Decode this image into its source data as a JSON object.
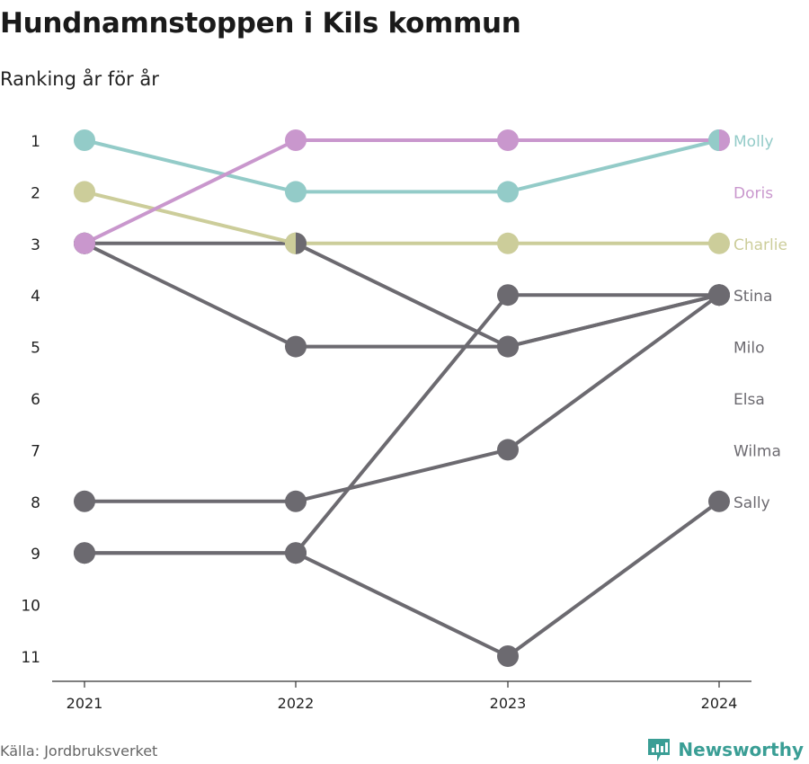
{
  "title": "Hundnamnstoppen i Kils kommun",
  "subtitle": "Ranking år för år",
  "source": "Källa: Jordbruksverket",
  "brand": "Newsworthy",
  "colors": {
    "Molly": "#93cbc8",
    "Doris": "#c997cd",
    "Charlie": "#cccd9a",
    "other": "#6c6a70",
    "brand": "#3a9e95"
  },
  "chart_data": {
    "type": "line",
    "x": [
      "2021",
      "2022",
      "2023",
      "2024"
    ],
    "y_ticks": [
      "1",
      "2",
      "3",
      "4",
      "5",
      "6",
      "7",
      "8",
      "9",
      "10",
      "11"
    ],
    "ylim": [
      1,
      11
    ],
    "y_reversed": true,
    "grid": false,
    "series": [
      {
        "name": "Wilma",
        "values": [
          8,
          8,
          7,
          4
        ]
      },
      {
        "name": "Sally",
        "values": [
          9,
          9,
          11,
          8
        ]
      },
      {
        "name": "Elsa",
        "values": [
          9,
          9,
          4,
          4
        ]
      },
      {
        "name": "Milo",
        "values": [
          3,
          3,
          5,
          4
        ]
      },
      {
        "name": "Stina",
        "values": [
          3,
          5,
          5,
          4
        ]
      },
      {
        "name": "Charlie",
        "values": [
          2,
          3,
          3,
          3
        ]
      },
      {
        "name": "Molly",
        "values": [
          1,
          2,
          2,
          1
        ]
      },
      {
        "name": "Doris",
        "values": [
          3,
          1,
          1,
          1
        ]
      }
    ],
    "labels": [
      {
        "name": "Molly",
        "rank": 1
      },
      {
        "name": "Doris",
        "rank": 2
      },
      {
        "name": "Charlie",
        "rank": 3
      },
      {
        "name": "Stina",
        "rank": 4
      },
      {
        "name": "Milo",
        "rank": 5
      },
      {
        "name": "Elsa",
        "rank": 6
      },
      {
        "name": "Wilma",
        "rank": 7
      },
      {
        "name": "Sally",
        "rank": 8
      }
    ]
  }
}
